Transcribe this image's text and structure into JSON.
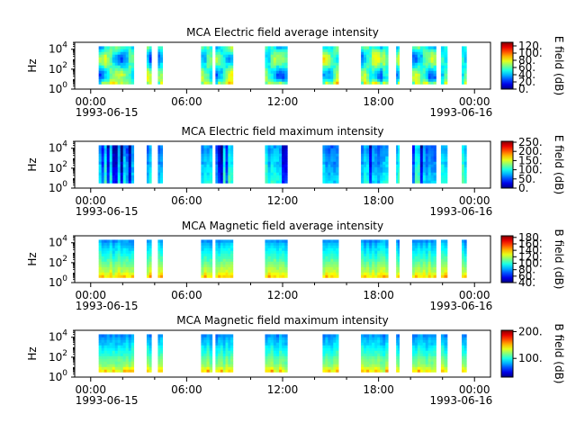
{
  "chart_data": [
    {
      "type": "heatmap",
      "title": "MCA  Electric field average intensity",
      "ylabel": "Hz",
      "colorbar": {
        "label": "E field (dB)",
        "range": [
          0,
          130
        ],
        "ticks": [
          "0.",
          "20.",
          "40.",
          "60.",
          "80.",
          "100.",
          "120."
        ],
        "tick_values": [
          0,
          20,
          40,
          60,
          80,
          100,
          120
        ]
      },
      "x_ticks": [
        "00:00",
        "06:00",
        "12:00",
        "18:00",
        "00:00"
      ],
      "x_tick_dates": [
        "1993-06-15",
        "1993-06-16"
      ],
      "y_ticks": [
        {
          "base": "10",
          "exp": "0"
        },
        {
          "base": "10",
          "exp": "2"
        },
        {
          "base": "10",
          "exp": "4"
        }
      ],
      "xlim_hours": [
        -1,
        25
      ],
      "ylim_log10": [
        0,
        4.7
      ],
      "data_log10_range": [
        0.5,
        4.3
      ],
      "profile": "eavg",
      "segments_hours": [
        [
          0.5,
          2.7
        ],
        [
          3.5,
          3.8
        ],
        [
          4.2,
          4.5
        ],
        [
          6.9,
          7.6
        ],
        [
          7.8,
          8.9
        ],
        [
          10.9,
          12.3
        ],
        [
          14.5,
          15.5
        ],
        [
          16.9,
          18.6
        ],
        [
          19.1,
          19.3
        ],
        [
          20.1,
          21.6
        ],
        [
          21.9,
          22.3
        ],
        [
          23.2,
          23.5
        ]
      ]
    },
    {
      "type": "heatmap",
      "title": "MCA  Electric field maximum intensity",
      "ylabel": "Hz",
      "colorbar": {
        "label": "E field (dB)",
        "range": [
          0,
          255
        ],
        "ticks": [
          "0.",
          "50.",
          "100.",
          "150.",
          "200.",
          "250."
        ],
        "tick_values": [
          0,
          50,
          100,
          150,
          200,
          250
        ]
      },
      "x_ticks": [
        "00:00",
        "06:00",
        "12:00",
        "18:00",
        "00:00"
      ],
      "x_tick_dates": [
        "1993-06-15",
        "1993-06-16"
      ],
      "y_ticks": [
        {
          "base": "10",
          "exp": "0"
        },
        {
          "base": "10",
          "exp": "2"
        },
        {
          "base": "10",
          "exp": "4"
        }
      ],
      "xlim_hours": [
        -1,
        25
      ],
      "ylim_log10": [
        0,
        4.7
      ],
      "data_log10_range": [
        0.5,
        4.3
      ],
      "profile": "emax",
      "segments_hours": [
        [
          0.5,
          2.7
        ],
        [
          3.5,
          3.8
        ],
        [
          4.2,
          4.5
        ],
        [
          6.9,
          7.6
        ],
        [
          7.8,
          8.9
        ],
        [
          10.9,
          12.3
        ],
        [
          14.5,
          15.5
        ],
        [
          16.9,
          18.6
        ],
        [
          19.1,
          19.3
        ],
        [
          20.1,
          21.6
        ],
        [
          21.9,
          22.3
        ],
        [
          23.2,
          23.5
        ]
      ]
    },
    {
      "type": "heatmap",
      "title": "MCA  Magnetic field average intensity",
      "ylabel": "Hz",
      "colorbar": {
        "label": "B field (dB)",
        "range": [
          40,
          185
        ],
        "ticks": [
          "40.",
          "60.",
          "80.",
          "100.",
          "120.",
          "140.",
          "160.",
          "180."
        ],
        "tick_values": [
          40,
          60,
          80,
          100,
          120,
          140,
          160,
          180
        ]
      },
      "x_ticks": [
        "00:00",
        "06:00",
        "12:00",
        "18:00",
        "00:00"
      ],
      "x_tick_dates": [
        "1993-06-15",
        "1993-06-16"
      ],
      "y_ticks": [
        {
          "base": "10",
          "exp": "0"
        },
        {
          "base": "10",
          "exp": "2"
        },
        {
          "base": "10",
          "exp": "4"
        }
      ],
      "xlim_hours": [
        -1,
        25
      ],
      "ylim_log10": [
        0,
        4.7
      ],
      "data_log10_range": [
        0.5,
        4.3
      ],
      "profile": "bavg",
      "segments_hours": [
        [
          0.5,
          2.7
        ],
        [
          3.5,
          3.8
        ],
        [
          4.2,
          4.5
        ],
        [
          6.9,
          7.6
        ],
        [
          7.8,
          8.9
        ],
        [
          10.9,
          12.3
        ],
        [
          14.5,
          15.5
        ],
        [
          16.9,
          18.6
        ],
        [
          19.1,
          19.3
        ],
        [
          20.1,
          21.6
        ],
        [
          21.9,
          22.3
        ],
        [
          23.2,
          23.5
        ]
      ]
    },
    {
      "type": "heatmap",
      "title": "MCA  Magnetic field maximum intensity",
      "ylabel": "Hz",
      "colorbar": {
        "label": "B field (dB)",
        "range": [
          30,
          205
        ],
        "ticks": [
          "100.",
          "200."
        ],
        "tick_values": [
          100,
          200
        ]
      },
      "x_ticks": [
        "00:00",
        "06:00",
        "12:00",
        "18:00",
        "00:00"
      ],
      "x_tick_dates": [
        "1993-06-15",
        "1993-06-16"
      ],
      "y_ticks": [
        {
          "base": "10",
          "exp": "0"
        },
        {
          "base": "10",
          "exp": "2"
        },
        {
          "base": "10",
          "exp": "4"
        }
      ],
      "xlim_hours": [
        -1,
        25
      ],
      "ylim_log10": [
        0,
        4.7
      ],
      "data_log10_range": [
        0.5,
        4.3
      ],
      "profile": "bmax",
      "segments_hours": [
        [
          0.5,
          2.7
        ],
        [
          3.5,
          3.8
        ],
        [
          4.2,
          4.5
        ],
        [
          6.9,
          7.6
        ],
        [
          7.8,
          8.9
        ],
        [
          10.9,
          12.3
        ],
        [
          14.5,
          15.5
        ],
        [
          16.9,
          18.6
        ],
        [
          19.1,
          19.3
        ],
        [
          20.1,
          21.6
        ],
        [
          21.9,
          22.3
        ],
        [
          23.2,
          23.5
        ]
      ]
    }
  ]
}
